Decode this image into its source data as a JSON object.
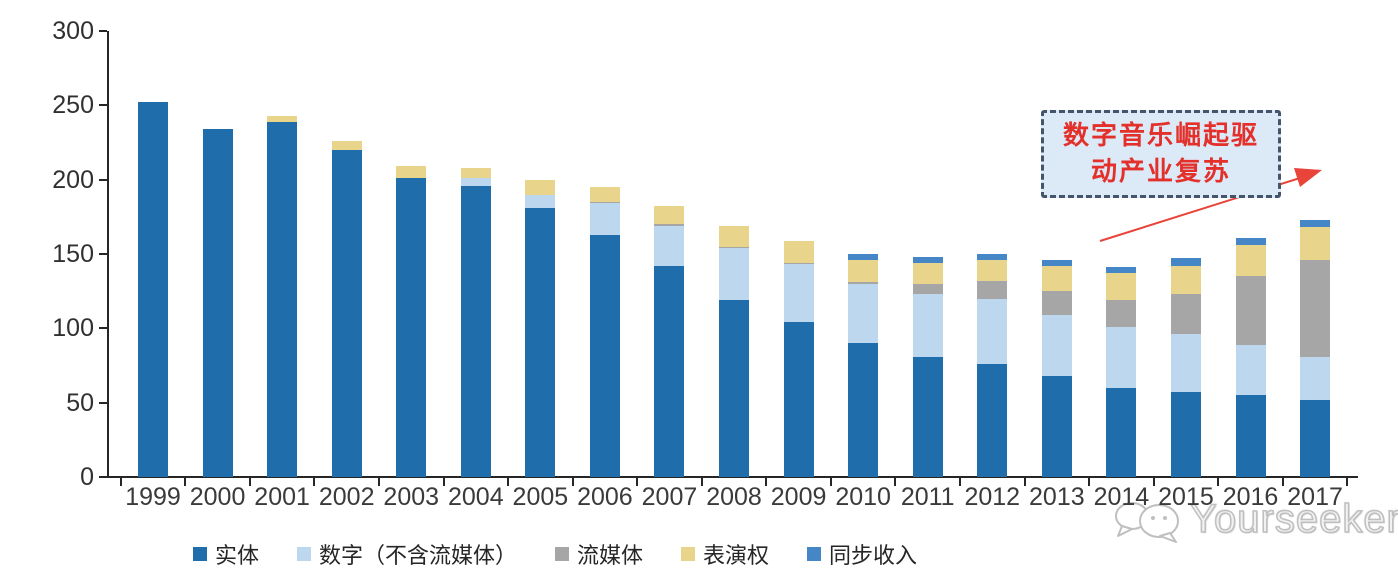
{
  "chart_data": {
    "type": "bar",
    "stacked": true,
    "title": "",
    "xlabel": "",
    "ylabel": "",
    "ylim": [
      0,
      300
    ],
    "y_ticks": [
      0,
      50,
      100,
      150,
      200,
      250,
      300
    ],
    "grid": false,
    "legend_position": "bottom",
    "categories": [
      "1999",
      "2000",
      "2001",
      "2002",
      "2003",
      "2004",
      "2005",
      "2006",
      "2007",
      "2008",
      "2009",
      "2010",
      "2011",
      "2012",
      "2013",
      "2014",
      "2015",
      "2016",
      "2017"
    ],
    "series": [
      {
        "name": "实体",
        "color": "#1F6DAA",
        "values": [
          252,
          234,
          239,
          220,
          201,
          196,
          181,
          163,
          142,
          119,
          104,
          90,
          81,
          76,
          68,
          60,
          57,
          55,
          52
        ]
      },
      {
        "name": "数字（不含流媒体）",
        "color": "#BDD7EE",
        "values": [
          0,
          0,
          0,
          0,
          0,
          5,
          9,
          21,
          27,
          35,
          39,
          40,
          42,
          44,
          41,
          41,
          39,
          34,
          29
        ]
      },
      {
        "name": "流媒体",
        "color": "#A6A6A6",
        "values": [
          0,
          0,
          0,
          0,
          0,
          0,
          0,
          1,
          1,
          1,
          1,
          1,
          7,
          12,
          16,
          18,
          27,
          46,
          65
        ]
      },
      {
        "name": "表演权",
        "color": "#E9D48B",
        "values": [
          0,
          0,
          4,
          6,
          8,
          7,
          10,
          10,
          12,
          14,
          15,
          15,
          14,
          14,
          17,
          18,
          19,
          21,
          22
        ]
      },
      {
        "name": "同步收入",
        "color": "#4486C6",
        "values": [
          0,
          0,
          0,
          0,
          0,
          0,
          0,
          0,
          0,
          0,
          0,
          4,
          4,
          4,
          4,
          4,
          5,
          5,
          5
        ]
      }
    ]
  },
  "annotation": {
    "line1": "数字音乐崛起驱",
    "line2": "动产业复苏",
    "border_color": "#44546A",
    "fill_color": "#DCE9F7",
    "text_color": "#E3302B",
    "arrow_color": "#E8443A"
  },
  "watermark": {
    "text": "Yourseeker"
  }
}
